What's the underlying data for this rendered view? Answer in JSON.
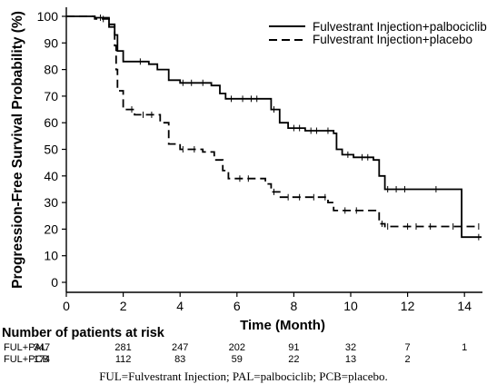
{
  "chart_data": {
    "type": "line",
    "title": "",
    "xlabel": "Time (Month)",
    "ylabel": "Progression-Free Survival Probability (%)",
    "xlim": [
      0,
      15
    ],
    "ylim": [
      0,
      100
    ],
    "xticks": [
      0,
      2,
      4,
      6,
      8,
      10,
      12,
      14
    ],
    "yticks": [
      0,
      10,
      20,
      30,
      40,
      50,
      60,
      70,
      80,
      90,
      100
    ],
    "grid": false,
    "legend_position": "top-right",
    "colors": {
      "line": "#000000",
      "censor": "#000000"
    },
    "series": [
      {
        "name": "Fulvestrant Injection+palbociclib",
        "style": "solid",
        "points": [
          [
            0,
            100
          ],
          [
            1.0,
            99.5
          ],
          [
            1.5,
            97
          ],
          [
            1.7,
            93
          ],
          [
            1.8,
            87
          ],
          [
            2.0,
            83
          ],
          [
            2.9,
            82
          ],
          [
            3.2,
            80
          ],
          [
            3.6,
            76
          ],
          [
            4.0,
            75
          ],
          [
            4.7,
            75
          ],
          [
            5.1,
            74
          ],
          [
            5.4,
            71
          ],
          [
            5.6,
            69
          ],
          [
            6.8,
            69
          ],
          [
            7.2,
            65
          ],
          [
            7.5,
            60
          ],
          [
            7.8,
            58
          ],
          [
            8.4,
            57
          ],
          [
            9.0,
            57
          ],
          [
            9.4,
            56
          ],
          [
            9.5,
            50
          ],
          [
            9.7,
            48
          ],
          [
            10.1,
            47
          ],
          [
            10.8,
            46
          ],
          [
            11.0,
            40
          ],
          [
            11.2,
            35
          ],
          [
            13.9,
            35
          ],
          [
            13.9,
            17
          ],
          [
            14.6,
            17
          ]
        ],
        "censor_x": [
          1.2,
          2.6,
          4.1,
          4.4,
          4.8,
          5.8,
          6.2,
          6.5,
          6.7,
          7.3,
          8.0,
          8.2,
          8.6,
          8.8,
          9.2,
          9.9,
          10.4,
          10.6,
          11.3,
          11.6,
          11.9,
          13.0,
          14.5
        ]
      },
      {
        "name": "Fulvestrant Injection+placebo",
        "style": "dashed",
        "points": [
          [
            0,
            100
          ],
          [
            1.0,
            99
          ],
          [
            1.5,
            96
          ],
          [
            1.7,
            89
          ],
          [
            1.75,
            80
          ],
          [
            1.8,
            72
          ],
          [
            2.0,
            65
          ],
          [
            2.4,
            63
          ],
          [
            3.0,
            63
          ],
          [
            3.3,
            60
          ],
          [
            3.6,
            52
          ],
          [
            4.0,
            50
          ],
          [
            4.8,
            49
          ],
          [
            5.2,
            46
          ],
          [
            5.5,
            42
          ],
          [
            5.7,
            39
          ],
          [
            6.8,
            39
          ],
          [
            7.0,
            37
          ],
          [
            7.2,
            34
          ],
          [
            7.5,
            32
          ],
          [
            9.0,
            32
          ],
          [
            9.2,
            30
          ],
          [
            9.4,
            27
          ],
          [
            10.8,
            27
          ],
          [
            11.0,
            22
          ],
          [
            11.2,
            21
          ],
          [
            14.5,
            21
          ]
        ],
        "censor_x": [
          1.3,
          2.3,
          2.7,
          3.0,
          4.1,
          4.5,
          6.1,
          6.4,
          7.3,
          7.8,
          8.2,
          8.7,
          9.1,
          9.8,
          10.2,
          11.1,
          11.3,
          12.0,
          12.3,
          12.8,
          13.6,
          14.5
        ]
      }
    ]
  },
  "risk_table": {
    "title": "Number of patients at risk",
    "times": [
      0,
      2,
      4,
      6,
      8,
      10,
      12,
      14
    ],
    "rows": [
      {
        "label": "FUL+PAL",
        "counts": [
          "347",
          "281",
          "247",
          "202",
          "91",
          "32",
          "7",
          "1"
        ]
      },
      {
        "label": "FUL+PCB",
        "counts": [
          "174",
          "112",
          "83",
          "59",
          "22",
          "13",
          "2",
          ""
        ]
      }
    ]
  },
  "footnote": "FUL=Fulvestrant Injection; PAL=palbociclib; PCB=placebo."
}
